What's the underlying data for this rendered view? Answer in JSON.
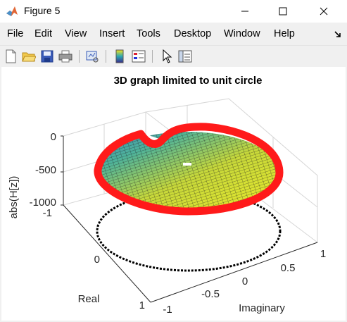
{
  "window": {
    "title": "Figure 5"
  },
  "menubar": {
    "items": [
      "File",
      "Edit",
      "View",
      "Insert",
      "Tools",
      "Desktop",
      "Window",
      "Help"
    ]
  },
  "toolbar": {
    "buttons": [
      "new-figure-icon",
      "open-file-icon",
      "save-icon",
      "print-icon",
      "link-plot-icon",
      "colorbar-icon",
      "legend-icon",
      "pointer-icon",
      "plot-browser-icon"
    ]
  },
  "colors": {
    "surface_edge": "#ff1a1a",
    "unit_circle": "#000000",
    "surface_high": "#e7e72e",
    "surface_low": "#3b7fbf"
  },
  "chart_data": {
    "type": "surface",
    "title": "3D graph limited to unit circle",
    "xlabel": "Imaginary",
    "ylabel": "Real",
    "zlabel": "abs(H[z])",
    "xticks": [
      "-1",
      "-0.5",
      "0",
      "0.5",
      "1"
    ],
    "yticks": [
      "-1",
      "0",
      "1"
    ],
    "zticks": [
      "0",
      "-500",
      "-1000"
    ],
    "xlim": [
      -1,
      1
    ],
    "ylim": [
      -1,
      1
    ],
    "zlim": [
      -1000,
      0
    ],
    "grid": true,
    "annotations": [
      "surface boundary (red) lies on unit circle",
      "unit circle (black dotted) drawn at z = -1000"
    ]
  }
}
